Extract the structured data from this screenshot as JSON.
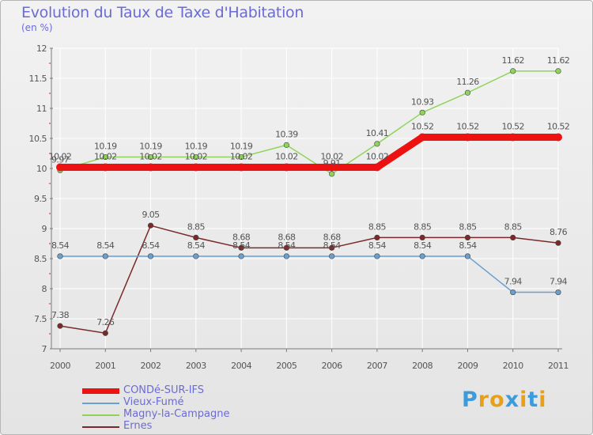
{
  "title": "Evolution du Taux de Taxe d'Habitation",
  "subtitle": "(en %)",
  "logo": {
    "letters": [
      "P",
      "r",
      "o",
      "x",
      "i",
      "t",
      "i"
    ],
    "colors": [
      "#3d9bdb",
      "#e8a019",
      "#e8a019",
      "#3d9bdb",
      "#e8a019",
      "#3d9bdb",
      "#e8a019"
    ]
  },
  "colors": {
    "title": "#6b6bd6",
    "axis": "#7a7a7a",
    "grid": "#ffffff",
    "tick_mark": "#cc2222"
  },
  "chart_data": {
    "type": "line",
    "title": "Evolution du Taux de Taxe d'Habitation",
    "ylabel": "(en %)",
    "xlabel": "",
    "x": [
      "2000",
      "2001",
      "2002",
      "2003",
      "2004",
      "2005",
      "2006",
      "2007",
      "2008",
      "2009",
      "2010",
      "2011"
    ],
    "ylim": [
      7,
      12
    ],
    "yticks": [
      "7",
      "7.5",
      "8",
      "8.5",
      "9",
      "9.5",
      "10",
      "10.5",
      "11",
      "11.5",
      "12"
    ],
    "grid": true,
    "legend": "bottom-left",
    "series": [
      {
        "name": "CONDé-SUR-IFS",
        "color": "#ee1111",
        "values": [
          10.02,
          10.02,
          10.02,
          10.02,
          10.02,
          10.02,
          10.02,
          10.02,
          10.52,
          10.52,
          10.52,
          10.52
        ],
        "labels": [
          "10.02",
          "10.02",
          "10.02",
          "10.02",
          "10.02",
          "10.02",
          "10.02",
          "10.02",
          "10.52",
          "10.52",
          "10.52",
          "10.52"
        ],
        "emphasis": true
      },
      {
        "name": "Vieux-Fumé",
        "color": "#6a9fd0",
        "values": [
          8.54,
          8.54,
          8.54,
          8.54,
          8.54,
          8.54,
          8.54,
          8.54,
          8.54,
          8.54,
          7.94,
          7.94
        ],
        "labels": [
          "8.54",
          "8.54",
          "8.54",
          "8.54",
          "8.54",
          "8.54",
          "8.54",
          "8.54",
          "8.54",
          "8.54",
          "7.94",
          "7.94"
        ]
      },
      {
        "name": "Magny-la-Campagne",
        "color": "#8fd35a",
        "values": [
          9.97,
          10.19,
          10.19,
          10.19,
          10.19,
          10.39,
          9.91,
          10.41,
          10.93,
          11.26,
          11.62,
          11.62
        ],
        "labels": [
          "9.97",
          "10.19",
          "10.19",
          "10.19",
          "10.19",
          "10.39",
          "9.91",
          "10.41",
          "10.93",
          "11.26",
          "11.62",
          "11.62"
        ]
      },
      {
        "name": "Ernes",
        "color": "#7a2a2a",
        "values": [
          7.38,
          7.26,
          9.05,
          8.85,
          8.68,
          8.68,
          8.68,
          8.85,
          8.85,
          8.85,
          8.85,
          8.76
        ],
        "labels": [
          "7.38",
          "7.26",
          "9.05",
          "8.85",
          "8.68",
          "8.68",
          "8.68",
          "8.85",
          "8.85",
          "8.85",
          "8.85",
          "8.76"
        ]
      }
    ]
  }
}
